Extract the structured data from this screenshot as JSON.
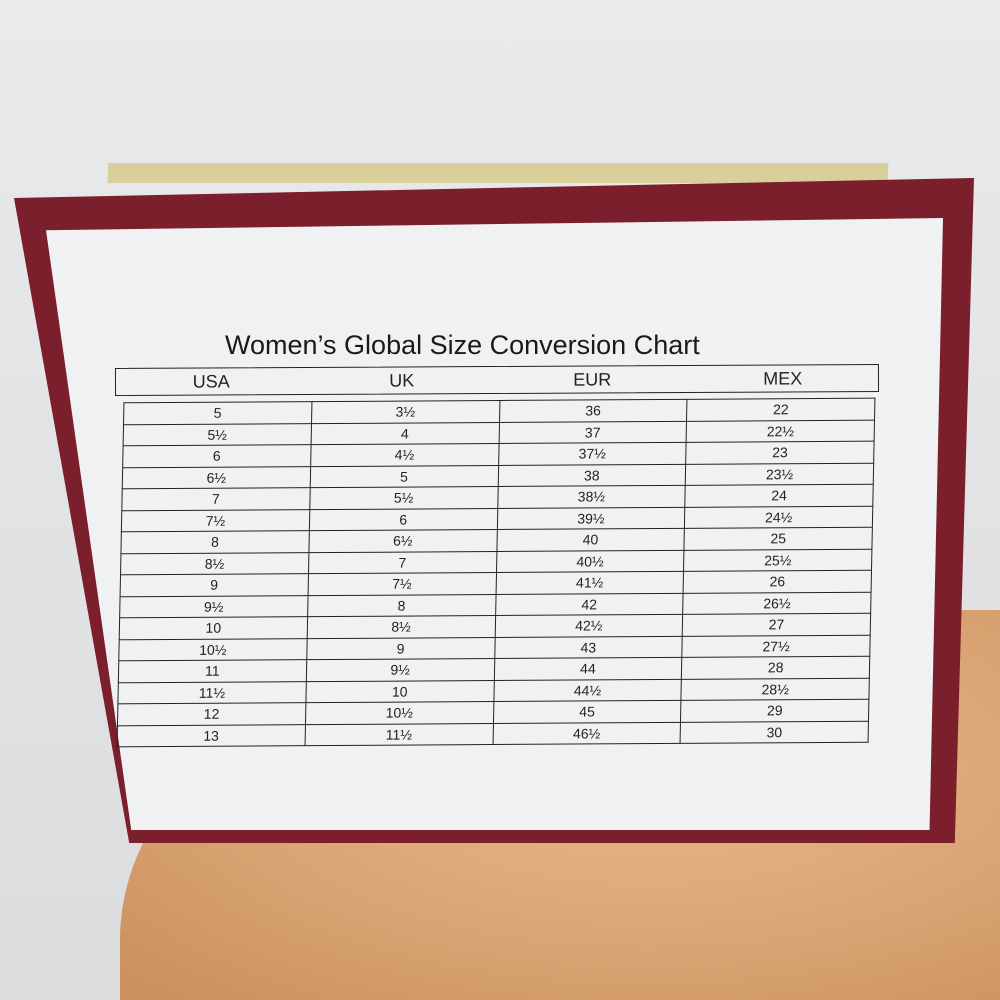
{
  "chart": {
    "title": "Women’s Global Size Conversion Chart",
    "columns": [
      "USA",
      "UK",
      "EUR",
      "MEX"
    ],
    "rows": [
      [
        "5",
        "3½",
        "36",
        "22"
      ],
      [
        "5½",
        "4",
        "37",
        "22½"
      ],
      [
        "6",
        "4½",
        "37½",
        "23"
      ],
      [
        "6½",
        "5",
        "38",
        "23½"
      ],
      [
        "7",
        "5½",
        "38½",
        "24"
      ],
      [
        "7½",
        "6",
        "39½",
        "24½"
      ],
      [
        "8",
        "6½",
        "40",
        "25"
      ],
      [
        "8½",
        "7",
        "40½",
        "25½"
      ],
      [
        "9",
        "7½",
        "41½",
        "26"
      ],
      [
        "9½",
        "8",
        "42",
        "26½"
      ],
      [
        "10",
        "8½",
        "42½",
        "27"
      ],
      [
        "10½",
        "9",
        "43",
        "27½"
      ],
      [
        "11",
        "9½",
        "44",
        "28"
      ],
      [
        "11½",
        "10",
        "44½",
        "28½"
      ],
      [
        "12",
        "10½",
        "45",
        "29"
      ],
      [
        "13",
        "11½",
        "46½",
        "30"
      ]
    ]
  },
  "colors": {
    "box": "#7a1f2b",
    "label": "#f0f1f3",
    "wood": "#dba676"
  }
}
